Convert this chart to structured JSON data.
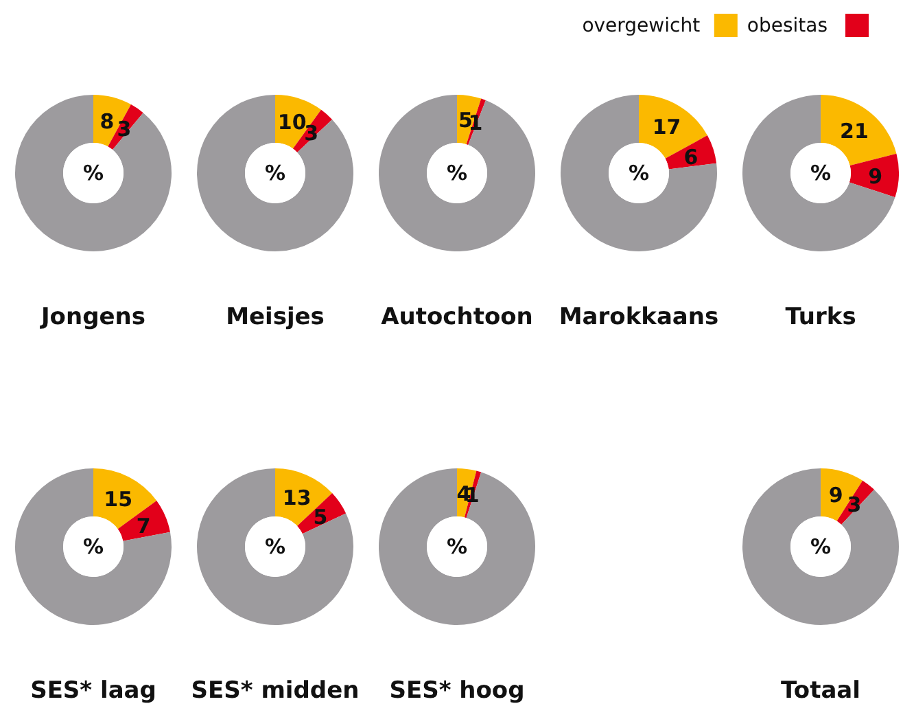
{
  "chart_data": [
    {
      "type": "donut",
      "title": "Jongens",
      "categories": [
        "overgewicht",
        "obesitas",
        null
      ],
      "values": [
        8,
        3,
        89
      ],
      "colors": [
        "#fbb900",
        "#e2001a",
        "#9d9b9e"
      ],
      "value_labels": [
        "8",
        "3",
        null
      ],
      "annotations": [
        "%"
      ],
      "legend": "top right"
    },
    {
      "type": "donut",
      "title": "Meisjes",
      "categories": [
        null,
        null,
        null
      ],
      "values": [
        10,
        3,
        87
      ],
      "colors": [
        "#fbb900",
        "#e2001a",
        "#9d9b9e"
      ],
      "value_labels": [
        "10",
        "3",
        null
      ],
      "annotations": [
        "%"
      ]
    },
    {
      "type": "donut",
      "title": "Autochtoon",
      "categories": [
        null,
        null,
        null
      ],
      "values": [
        5,
        1,
        94
      ],
      "colors": [
        "#fbb900",
        "#e2001a",
        "#9d9b9e"
      ],
      "value_labels": [
        "5",
        "1",
        null
      ],
      "annotations": [
        "%"
      ]
    },
    {
      "type": "donut",
      "title": "Marokkaans",
      "categories": [
        null,
        null,
        null
      ],
      "values": [
        17,
        6,
        77
      ],
      "colors": [
        "#fbb900",
        "#e2001a",
        "#9d9b9e"
      ],
      "value_labels": [
        "17",
        "6",
        null
      ],
      "annotations": [
        "%"
      ]
    },
    {
      "type": "donut",
      "title": "Turks",
      "categories": [
        null,
        null,
        null
      ],
      "values": [
        21,
        9,
        70
      ],
      "colors": [
        "#fbb900",
        "#e2001a",
        "#9d9b9e"
      ],
      "value_labels": [
        "21",
        "9",
        null
      ],
      "annotations": [
        "%"
      ]
    },
    {
      "type": "donut",
      "title": "SES* laag",
      "categories": [
        null,
        null,
        null
      ],
      "values": [
        15,
        7,
        78
      ],
      "colors": [
        "#fbb900",
        "#e2001a",
        "#9d9b9e"
      ],
      "value_labels": [
        "15",
        "7",
        null
      ],
      "annotations": [
        "%"
      ]
    },
    {
      "type": "donut",
      "title": "SES* midden",
      "categories": [
        null,
        null,
        null
      ],
      "values": [
        13,
        5,
        82
      ],
      "colors": [
        "#fbb900",
        "#e2001a",
        "#9d9b9e"
      ],
      "value_labels": [
        "13",
        "5",
        null
      ],
      "annotations": [
        "%"
      ]
    },
    {
      "type": "donut",
      "title": "SES* hoog",
      "categories": [
        null,
        null,
        null
      ],
      "values": [
        4,
        1,
        95
      ],
      "colors": [
        "#fbb900",
        "#e2001a",
        "#9d9b9e"
      ],
      "value_labels": [
        "4",
        "1",
        null
      ],
      "annotations": [
        "%"
      ]
    },
    {
      "type": "donut",
      "title": "Totaal",
      "categories": [
        null,
        null,
        null
      ],
      "values": [
        9,
        3,
        88
      ],
      "colors": [
        "#fbb900",
        "#e2001a",
        "#9d9b9e"
      ],
      "value_labels": [
        "9",
        "3",
        null
      ],
      "annotations": [
        "%"
      ]
    }
  ]
}
